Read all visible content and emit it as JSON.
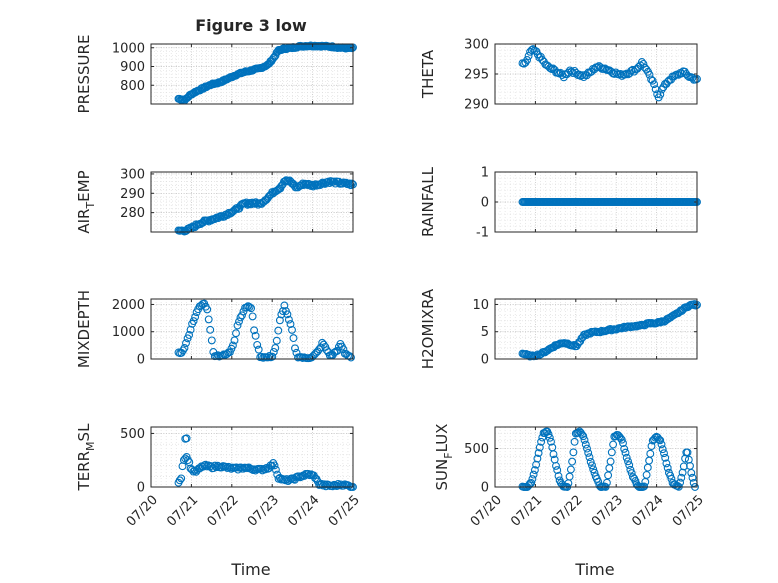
{
  "figure": {
    "title": "Figure 3 low",
    "xlabel": "Time",
    "x_ticks": [
      "07/20",
      "07/21",
      "07/22",
      "07/23",
      "07/24",
      "07/25"
    ],
    "marker_color": "#0072BD"
  },
  "chart_data": [
    {
      "type": "scatter",
      "label_main": "PRESSURE",
      "label_sub": "",
      "xlim": [
        0,
        5
      ],
      "ylim": [
        700,
        1020
      ],
      "yticks": [
        800,
        900,
        1000
      ],
      "grid": true,
      "keys": [
        [
          0.68,
          728
        ],
        [
          0.85,
          722
        ],
        [
          0.95,
          745
        ],
        [
          1.1,
          765
        ],
        [
          1.3,
          785
        ],
        [
          1.5,
          805
        ],
        [
          1.7,
          815
        ],
        [
          1.9,
          835
        ],
        [
          2.1,
          855
        ],
        [
          2.3,
          870
        ],
        [
          2.5,
          880
        ],
        [
          2.7,
          890
        ],
        [
          2.9,
          910
        ],
        [
          3.05,
          950
        ],
        [
          3.15,
          985
        ],
        [
          3.3,
          995
        ],
        [
          3.5,
          1000
        ],
        [
          3.7,
          1008
        ],
        [
          3.9,
          1010
        ],
        [
          4.1,
          1010
        ],
        [
          4.3,
          1008
        ],
        [
          4.5,
          1005
        ],
        [
          4.7,
          1000
        ],
        [
          4.85,
          998
        ],
        [
          5.0,
          998
        ]
      ],
      "n": 170,
      "xstart": 0.68,
      "xend": 5.0,
      "jitter": 4
    },
    {
      "type": "scatter",
      "label_main": "THETA",
      "label_sub": "",
      "xlim": [
        0,
        5
      ],
      "ylim": [
        290,
        300
      ],
      "yticks": [
        290,
        295,
        300
      ],
      "grid": true,
      "keys": [
        [
          0.68,
          296.6
        ],
        [
          0.78,
          297.0
        ],
        [
          0.9,
          299.0
        ],
        [
          1.0,
          298.8
        ],
        [
          1.15,
          297.5
        ],
        [
          1.3,
          296.2
        ],
        [
          1.5,
          295.5
        ],
        [
          1.7,
          294.6
        ],
        [
          1.85,
          295.6
        ],
        [
          2.0,
          295.2
        ],
        [
          2.2,
          294.6
        ],
        [
          2.35,
          295.2
        ],
        [
          2.5,
          296.2
        ],
        [
          2.7,
          296.0
        ],
        [
          2.9,
          295.4
        ],
        [
          3.1,
          294.8
        ],
        [
          3.3,
          295.2
        ],
        [
          3.5,
          295.8
        ],
        [
          3.65,
          297.0
        ],
        [
          3.8,
          295.0
        ],
        [
          3.95,
          293.0
        ],
        [
          4.05,
          291.2
        ],
        [
          4.15,
          292.6
        ],
        [
          4.3,
          294.0
        ],
        [
          4.5,
          294.8
        ],
        [
          4.65,
          295.4
        ],
        [
          4.8,
          294.6
        ],
        [
          5.0,
          294.0
        ]
      ],
      "n": 115,
      "xstart": 0.68,
      "xend": 5.0,
      "jitter": 0.25
    },
    {
      "type": "scatter",
      "label_main": "AIR",
      "label_sub": "T",
      "label_tail": "EMP",
      "xlim": [
        0,
        5
      ],
      "ylim": [
        270,
        301
      ],
      "yticks": [
        280,
        290,
        300
      ],
      "grid": true,
      "keys": [
        [
          0.68,
          270.5
        ],
        [
          0.9,
          271
        ],
        [
          1.0,
          272
        ],
        [
          1.2,
          274.5
        ],
        [
          1.5,
          276.5
        ],
        [
          1.8,
          278.5
        ],
        [
          2.1,
          281.5
        ],
        [
          2.3,
          284.5
        ],
        [
          2.5,
          285
        ],
        [
          2.7,
          284.5
        ],
        [
          2.9,
          288
        ],
        [
          3.05,
          291
        ],
        [
          3.2,
          293
        ],
        [
          3.3,
          296.5
        ],
        [
          3.45,
          296
        ],
        [
          3.6,
          293
        ],
        [
          3.8,
          295
        ],
        [
          4.0,
          294
        ],
        [
          4.2,
          295
        ],
        [
          4.4,
          296
        ],
        [
          4.6,
          295.5
        ],
        [
          4.8,
          295
        ],
        [
          5.0,
          294.5
        ]
      ],
      "n": 150,
      "xstart": 0.68,
      "xend": 5.0,
      "jitter": 0.7
    },
    {
      "type": "scatter",
      "label_main": "RAINFALL",
      "label_sub": "",
      "xlim": [
        0,
        5
      ],
      "ylim": [
        -1,
        1
      ],
      "yticks": [
        -1,
        0,
        1
      ],
      "grid": true,
      "keys": [
        [
          0.68,
          0
        ],
        [
          5.0,
          0
        ]
      ],
      "n": 150,
      "xstart": 0.68,
      "xend": 5.0,
      "jitter": 0
    },
    {
      "type": "scatter",
      "label_main": "MIXDEPTH",
      "label_sub": "",
      "xlim": [
        0,
        5
      ],
      "ylim": [
        0,
        2200
      ],
      "yticks": [
        0,
        1000,
        2000
      ],
      "grid": true,
      "keys": [
        [
          0.68,
          200
        ],
        [
          0.8,
          300
        ],
        [
          0.9,
          700
        ],
        [
          1.0,
          1200
        ],
        [
          1.1,
          1600
        ],
        [
          1.2,
          1900
        ],
        [
          1.3,
          2050
        ],
        [
          1.38,
          1900
        ],
        [
          1.45,
          1300
        ],
        [
          1.5,
          700
        ],
        [
          1.55,
          150
        ],
        [
          1.7,
          120
        ],
        [
          1.85,
          150
        ],
        [
          1.95,
          250
        ],
        [
          2.05,
          600
        ],
        [
          2.15,
          1300
        ],
        [
          2.3,
          1800
        ],
        [
          2.4,
          1950
        ],
        [
          2.5,
          1800
        ],
        [
          2.55,
          1100
        ],
        [
          2.62,
          600
        ],
        [
          2.7,
          100
        ],
        [
          2.85,
          50
        ],
        [
          3.0,
          100
        ],
        [
          3.1,
          500
        ],
        [
          3.2,
          1500
        ],
        [
          3.3,
          1950
        ],
        [
          3.4,
          1500
        ],
        [
          3.5,
          1000
        ],
        [
          3.55,
          500
        ],
        [
          3.62,
          100
        ],
        [
          3.8,
          30
        ],
        [
          4.0,
          80
        ],
        [
          4.15,
          300
        ],
        [
          4.25,
          600
        ],
        [
          4.32,
          400
        ],
        [
          4.45,
          100
        ],
        [
          4.6,
          300
        ],
        [
          4.7,
          550
        ],
        [
          4.8,
          200
        ],
        [
          4.95,
          80
        ]
      ],
      "n": 115,
      "xstart": 0.68,
      "xend": 4.95,
      "jitter": 40
    },
    {
      "type": "scatter",
      "label_main": "H2OMIXRA",
      "label_sub": "",
      "xlim": [
        0,
        5
      ],
      "ylim": [
        0,
        11
      ],
      "yticks": [
        0,
        5,
        10
      ],
      "grid": true,
      "keys": [
        [
          0.68,
          1.0
        ],
        [
          0.9,
          0.5
        ],
        [
          1.1,
          0.8
        ],
        [
          1.3,
          1.6
        ],
        [
          1.5,
          2.5
        ],
        [
          1.7,
          3.0
        ],
        [
          1.85,
          2.7
        ],
        [
          2.0,
          2.3
        ],
        [
          2.1,
          3.2
        ],
        [
          2.2,
          4.3
        ],
        [
          2.4,
          4.9
        ],
        [
          2.6,
          5.0
        ],
        [
          2.8,
          5.3
        ],
        [
          3.0,
          5.5
        ],
        [
          3.2,
          5.8
        ],
        [
          3.4,
          6.0
        ],
        [
          3.6,
          6.1
        ],
        [
          3.8,
          6.5
        ],
        [
          4.0,
          6.6
        ],
        [
          4.2,
          7.0
        ],
        [
          4.4,
          7.8
        ],
        [
          4.6,
          8.8
        ],
        [
          4.75,
          9.6
        ],
        [
          4.9,
          10.0
        ],
        [
          5.0,
          9.8
        ]
      ],
      "n": 140,
      "xstart": 0.68,
      "xend": 5.0,
      "jitter": 0.15
    },
    {
      "type": "scatter",
      "label_main": "TERR",
      "label_sub": "M",
      "label_tail": "SL",
      "xlim": [
        0,
        5
      ],
      "ylim": [
        0,
        560
      ],
      "yticks": [
        0,
        500
      ],
      "grid": true,
      "keys": [
        [
          0.68,
          50
        ],
        [
          0.75,
          90
        ],
        [
          0.8,
          260
        ],
        [
          0.9,
          280
        ],
        [
          0.95,
          220
        ],
        [
          1.0,
          160
        ],
        [
          1.1,
          140
        ],
        [
          1.3,
          200
        ],
        [
          1.5,
          185
        ],
        [
          1.7,
          195
        ],
        [
          1.9,
          180
        ],
        [
          2.1,
          170
        ],
        [
          2.3,
          180
        ],
        [
          2.5,
          170
        ],
        [
          2.7,
          160
        ],
        [
          2.9,
          180
        ],
        [
          3.05,
          220
        ],
        [
          3.15,
          90
        ],
        [
          3.3,
          60
        ],
        [
          3.5,
          70
        ],
        [
          3.7,
          100
        ],
        [
          3.9,
          120
        ],
        [
          4.05,
          100
        ],
        [
          4.15,
          30
        ],
        [
          4.3,
          15
        ],
        [
          4.5,
          10
        ],
        [
          4.7,
          25
        ],
        [
          4.9,
          10
        ],
        [
          5.0,
          5
        ]
      ],
      "extra": [
        [
          0.85,
          450
        ],
        [
          0.88,
          455
        ]
      ],
      "n": 130,
      "xstart": 0.68,
      "xend": 5.0,
      "jitter": 12
    },
    {
      "type": "scatter",
      "label_main": "SUN",
      "label_sub": "F",
      "label_tail": "LUX",
      "xlim": [
        0,
        5
      ],
      "ylim": [
        0,
        780
      ],
      "yticks": [
        0,
        500
      ],
      "grid": true,
      "keys": [
        [
          0.68,
          0
        ],
        [
          0.8,
          0
        ],
        [
          0.9,
          60
        ],
        [
          1.0,
          250
        ],
        [
          1.1,
          500
        ],
        [
          1.2,
          700
        ],
        [
          1.3,
          720
        ],
        [
          1.38,
          600
        ],
        [
          1.5,
          300
        ],
        [
          1.6,
          80
        ],
        [
          1.7,
          0
        ],
        [
          1.8,
          0
        ],
        [
          1.9,
          300
        ],
        [
          2.0,
          700
        ],
        [
          2.1,
          720
        ],
        [
          2.2,
          650
        ],
        [
          2.3,
          450
        ],
        [
          2.45,
          200
        ],
        [
          2.6,
          0
        ],
        [
          2.75,
          0
        ],
        [
          2.85,
          300
        ],
        [
          2.95,
          650
        ],
        [
          3.05,
          680
        ],
        [
          3.15,
          600
        ],
        [
          3.25,
          400
        ],
        [
          3.4,
          150
        ],
        [
          3.55,
          0
        ],
        [
          3.7,
          0
        ],
        [
          3.8,
          300
        ],
        [
          3.9,
          600
        ],
        [
          4.0,
          650
        ],
        [
          4.1,
          600
        ],
        [
          4.2,
          400
        ],
        [
          4.3,
          200
        ],
        [
          4.4,
          50
        ],
        [
          4.55,
          0
        ],
        [
          4.65,
          200
        ],
        [
          4.75,
          500
        ],
        [
          4.85,
          200
        ],
        [
          4.95,
          0
        ]
      ],
      "n": 140,
      "xstart": 0.68,
      "xend": 4.95,
      "jitter": 8
    }
  ]
}
